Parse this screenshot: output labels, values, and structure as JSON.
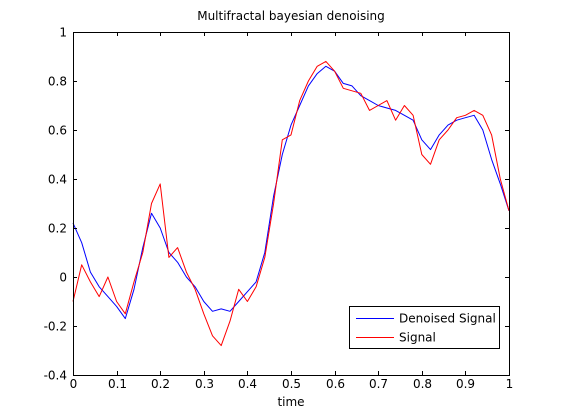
{
  "chart_data": {
    "type": "line",
    "title": "Multifractal bayesian denoising",
    "xlabel": "time",
    "ylabel": "",
    "xlim": [
      0,
      1
    ],
    "ylim": [
      -0.4,
      1
    ],
    "xticks": [
      "0",
      "0.1",
      "0.2",
      "0.3",
      "0.4",
      "0.5",
      "0.6",
      "0.7",
      "0.8",
      "0.9",
      "1"
    ],
    "yticks": [
      "-0.4",
      "-0.2",
      "0",
      "0.2",
      "0.4",
      "0.6",
      "0.8",
      "1"
    ],
    "grid": false,
    "legend_position": "bottom-right",
    "series": [
      {
        "name": "Denoised Signal",
        "color": "#0000ff",
        "x": [
          0,
          0.02,
          0.04,
          0.06,
          0.08,
          0.1,
          0.12,
          0.14,
          0.16,
          0.18,
          0.2,
          0.22,
          0.24,
          0.26,
          0.28,
          0.3,
          0.32,
          0.34,
          0.36,
          0.38,
          0.4,
          0.42,
          0.44,
          0.46,
          0.48,
          0.5,
          0.52,
          0.54,
          0.56,
          0.58,
          0.6,
          0.62,
          0.64,
          0.66,
          0.68,
          0.7,
          0.72,
          0.74,
          0.76,
          0.78,
          0.8,
          0.82,
          0.84,
          0.86,
          0.88,
          0.9,
          0.92,
          0.94,
          0.96,
          0.98,
          1.0
        ],
        "y": [
          0.22,
          0.14,
          0.02,
          -0.04,
          -0.08,
          -0.12,
          -0.17,
          -0.05,
          0.12,
          0.26,
          0.2,
          0.1,
          0.06,
          0.0,
          -0.04,
          -0.1,
          -0.14,
          -0.13,
          -0.14,
          -0.1,
          -0.06,
          -0.02,
          0.1,
          0.33,
          0.5,
          0.62,
          0.7,
          0.78,
          0.83,
          0.86,
          0.84,
          0.79,
          0.78,
          0.74,
          0.72,
          0.7,
          0.69,
          0.68,
          0.66,
          0.64,
          0.56,
          0.52,
          0.58,
          0.62,
          0.64,
          0.65,
          0.66,
          0.6,
          0.48,
          0.38,
          0.27
        ]
      },
      {
        "name": "Signal",
        "color": "#ff0000",
        "x": [
          0,
          0.02,
          0.04,
          0.06,
          0.08,
          0.1,
          0.12,
          0.14,
          0.16,
          0.18,
          0.2,
          0.22,
          0.24,
          0.26,
          0.28,
          0.3,
          0.32,
          0.34,
          0.36,
          0.38,
          0.4,
          0.42,
          0.44,
          0.46,
          0.48,
          0.5,
          0.52,
          0.54,
          0.56,
          0.58,
          0.6,
          0.62,
          0.64,
          0.66,
          0.68,
          0.7,
          0.72,
          0.74,
          0.76,
          0.78,
          0.8,
          0.82,
          0.84,
          0.86,
          0.88,
          0.9,
          0.92,
          0.94,
          0.96,
          0.98,
          1.0
        ],
        "y": [
          -0.1,
          0.05,
          -0.02,
          -0.08,
          0.0,
          -0.1,
          -0.15,
          -0.02,
          0.1,
          0.3,
          0.38,
          0.08,
          0.12,
          0.02,
          -0.05,
          -0.15,
          -0.24,
          -0.28,
          -0.18,
          -0.05,
          -0.1,
          -0.04,
          0.08,
          0.3,
          0.56,
          0.58,
          0.72,
          0.8,
          0.86,
          0.88,
          0.84,
          0.77,
          0.76,
          0.75,
          0.68,
          0.7,
          0.72,
          0.64,
          0.7,
          0.66,
          0.5,
          0.46,
          0.56,
          0.6,
          0.65,
          0.66,
          0.68,
          0.66,
          0.58,
          0.4,
          0.27
        ]
      }
    ]
  }
}
